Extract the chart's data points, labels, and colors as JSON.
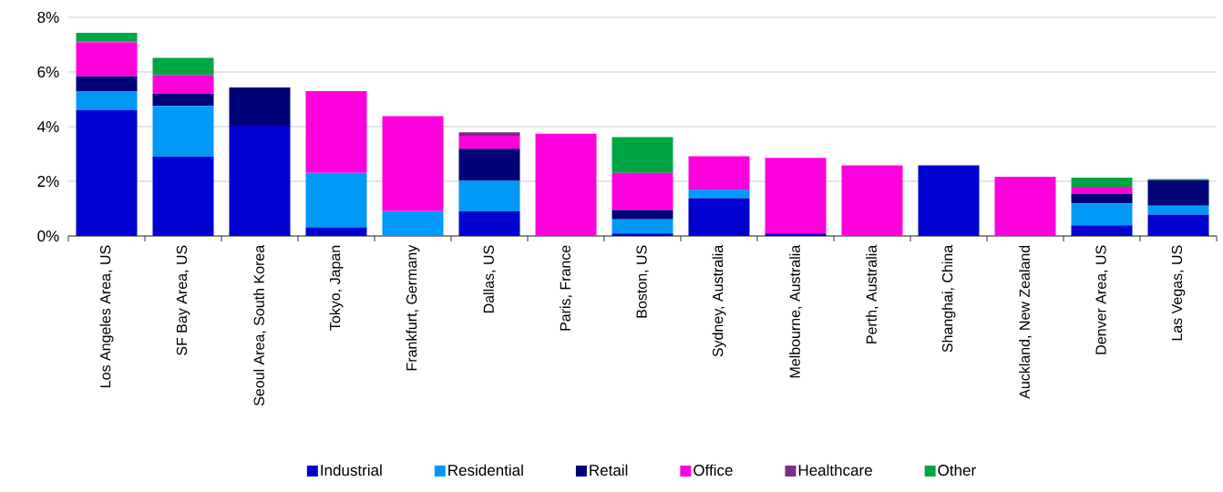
{
  "chart_data": {
    "type": "bar",
    "stacked": true,
    "categories": [
      "Los Angeles Area, US",
      "SF Bay Area, US",
      "Seoul Area, South Korea",
      "Tokyo, Japan",
      "Frankfurt, Germany",
      "Dallas, US",
      "Paris, France",
      "Boston, US",
      "Sydney, Australia",
      "Melbourne, Australia",
      "Perth, Australia",
      "Shanghai, China",
      "Auckland, New Zealand",
      "Denver Area, US",
      "Las Vegas, US"
    ],
    "series": [
      {
        "name": "Industrial",
        "color": "#0000d0",
        "values": [
          4.6,
          2.9,
          4.03,
          0.32,
          0,
          0.9,
          0,
          0.09,
          1.38,
          0.09,
          0,
          2.58,
          0,
          0.39,
          0.78
        ]
      },
      {
        "name": "Residential",
        "color": "#0099f8",
        "values": [
          0.68,
          1.86,
          0,
          1.99,
          0.91,
          1.12,
          0,
          0.52,
          0.32,
          0,
          0,
          0,
          0,
          0.8,
          0.33
        ]
      },
      {
        "name": "Retail",
        "color": "#000077",
        "values": [
          0.56,
          0.44,
          1.4,
          0,
          0,
          1.17,
          0,
          0.34,
          0,
          0,
          0,
          0,
          0,
          0.36,
          0.93
        ]
      },
      {
        "name": "Office",
        "color": "#ff00dd",
        "values": [
          1.24,
          0.69,
          0,
          2.99,
          3.47,
          0.48,
          3.74,
          1.36,
          1.22,
          2.77,
          2.58,
          0,
          2.17,
          0.25,
          0
        ]
      },
      {
        "name": "Healthcare",
        "color": "#7b2c8a",
        "values": [
          0.03,
          null,
          0,
          0,
          0,
          0.12,
          0,
          0,
          0,
          0,
          0,
          0,
          0,
          0,
          0
        ]
      },
      {
        "name": "Other",
        "color": "#00a642",
        "values": [
          0.32,
          0.63,
          0,
          0,
          0,
          0,
          0,
          1.31,
          0,
          0,
          0,
          0,
          0,
          0.33,
          0.04
        ]
      }
    ],
    "ylim": [
      0,
      8
    ],
    "yticks": [
      {
        "value": 0,
        "label": "0%"
      },
      {
        "value": 2,
        "label": "2%"
      },
      {
        "value": 4,
        "label": "4%"
      },
      {
        "value": 6,
        "label": "6%"
      },
      {
        "value": 8,
        "label": "8%"
      }
    ],
    "grid": "y",
    "legend": "bottom"
  }
}
